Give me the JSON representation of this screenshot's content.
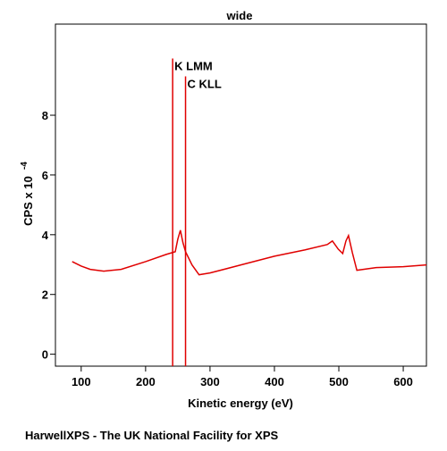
{
  "chart_data": {
    "type": "line",
    "title": "wide",
    "x_label": "Kinetic energy (eV)",
    "y_label": "CPS x 10",
    "y_label_exponent": "-4",
    "xlim": [
      60,
      636
    ],
    "xticks": [
      100,
      200,
      300,
      400,
      500,
      600
    ],
    "ylim": [
      -0.4,
      11.05
    ],
    "yticks": [
      0,
      2,
      4,
      6,
      8
    ],
    "series": [
      {
        "name": "wide",
        "color": "#e00000",
        "x": [
          86,
          100,
          114,
          135,
          162,
          200,
          232,
          246,
          250,
          254,
          258,
          262,
          272,
          283,
          300,
          350,
          400,
          447,
          482,
          490,
          499,
          506,
          511,
          515,
          521,
          528,
          558,
          600,
          636
        ],
        "values": [
          3.1,
          2.95,
          2.84,
          2.78,
          2.84,
          3.1,
          3.34,
          3.43,
          3.85,
          4.15,
          3.73,
          3.43,
          2.99,
          2.66,
          2.72,
          3.0,
          3.28,
          3.49,
          3.67,
          3.79,
          3.52,
          3.37,
          3.79,
          3.97,
          3.4,
          2.81,
          2.9,
          2.93,
          2.99
        ]
      }
    ],
    "annotations": [
      {
        "label": "K LMM",
        "x": 242,
        "y": 9.9
      },
      {
        "label": "C KLL",
        "x": 262,
        "y": 9.3
      }
    ]
  },
  "footer": "HarwellXPS - The UK National Facility for XPS"
}
